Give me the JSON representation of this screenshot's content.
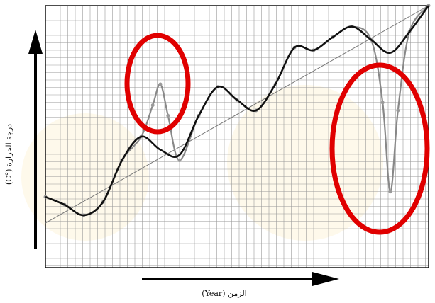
{
  "chart_data": {
    "type": "line",
    "xlabel": "الزمن (Year)",
    "ylabel": "درجة الحرارة (°C)",
    "xlim": [
      0,
      100
    ],
    "ylim": [
      0,
      100
    ],
    "grid": true,
    "series": [
      {
        "style": "smoothed",
        "color": "#111111",
        "x": [
          0,
          5,
          10,
          15,
          20,
          25,
          30,
          35,
          40,
          45,
          50,
          55,
          60,
          65,
          70,
          75,
          80,
          85,
          90,
          95,
          100
        ],
        "values": [
          27,
          24,
          20,
          25,
          41,
          50,
          45,
          43,
          58,
          69,
          64,
          60,
          70,
          84,
          83,
          88,
          92,
          87,
          82,
          90,
          100
        ]
      },
      {
        "style": "observed",
        "color": "#888888",
        "x": [
          0,
          5,
          10,
          15,
          20,
          25,
          28,
          30,
          32,
          35,
          40,
          45,
          50,
          55,
          60,
          65,
          70,
          75,
          80,
          85,
          88,
          90,
          92,
          95,
          100
        ],
        "values": [
          27,
          24,
          20,
          25,
          41,
          50,
          62,
          70,
          58,
          41,
          58,
          69,
          64,
          60,
          70,
          84,
          83,
          88,
          92,
          87,
          63,
          29,
          60,
          90,
          100
        ]
      },
      {
        "style": "trend",
        "color": "#777777",
        "x": [
          0,
          100
        ],
        "values": [
          17,
          100
        ]
      }
    ],
    "annotations": [
      {
        "shape": "ellipse",
        "color": "#e00000",
        "target_x": 30
      },
      {
        "shape": "ellipse",
        "color": "#e00000",
        "target_x": 90
      }
    ]
  }
}
